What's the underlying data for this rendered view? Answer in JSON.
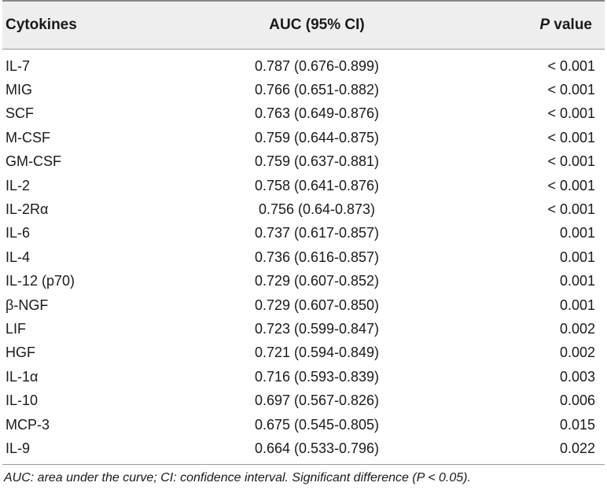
{
  "header": {
    "col_name": "Cytokines",
    "col_auc": "AUC (95% CI)",
    "col_p_italic": "P",
    "col_p_rest": " value"
  },
  "rows": [
    {
      "name": "IL-7",
      "auc": "0.787 (0.676-0.899)",
      "p": "< 0.001"
    },
    {
      "name": "MIG",
      "auc": "0.766 (0.651-0.882)",
      "p": "< 0.001"
    },
    {
      "name": "SCF",
      "auc": "0.763 (0.649-0.876)",
      "p": "< 0.001"
    },
    {
      "name": "M-CSF",
      "auc": "0.759 (0.644-0.875)",
      "p": "< 0.001"
    },
    {
      "name": "GM-CSF",
      "auc": "0.759 (0.637-0.881)",
      "p": "< 0.001"
    },
    {
      "name": "IL-2",
      "auc": "0.758 (0.641-0.876)",
      "p": "< 0.001"
    },
    {
      "name": "IL-2Rα",
      "auc": "0.756 (0.64-0.873)",
      "p": "< 0.001"
    },
    {
      "name": "IL-6",
      "auc": "0.737 (0.617-0.857)",
      "p": "0.001"
    },
    {
      "name": "IL-4",
      "auc": "0.736 (0.616-0.857)",
      "p": "0.001"
    },
    {
      "name": "IL-12 (p70)",
      "auc": "0.729 (0.607-0.852)",
      "p": "0.001"
    },
    {
      "name": "β-NGF",
      "auc": "0.729 (0.607-0.850)",
      "p": "0.001"
    },
    {
      "name": "LIF",
      "auc": "0.723 (0.599-0.847)",
      "p": "0.002"
    },
    {
      "name": "HGF",
      "auc": "0.721 (0.594-0.849)",
      "p": "0.002"
    },
    {
      "name": "IL-1α",
      "auc": "0.716 (0.593-0.839)",
      "p": "0.003"
    },
    {
      "name": "IL-10",
      "auc": "0.697 (0.567-0.826)",
      "p": "0.006"
    },
    {
      "name": "MCP-3",
      "auc": "0.675 (0.545-0.805)",
      "p": "0.015"
    },
    {
      "name": "IL-9",
      "auc": "0.664 (0.533-0.796)",
      "p": "0.022"
    }
  ],
  "footnote": "AUC: area under the curve; CI: confidence interval. Significant difference (P < 0.05)."
}
